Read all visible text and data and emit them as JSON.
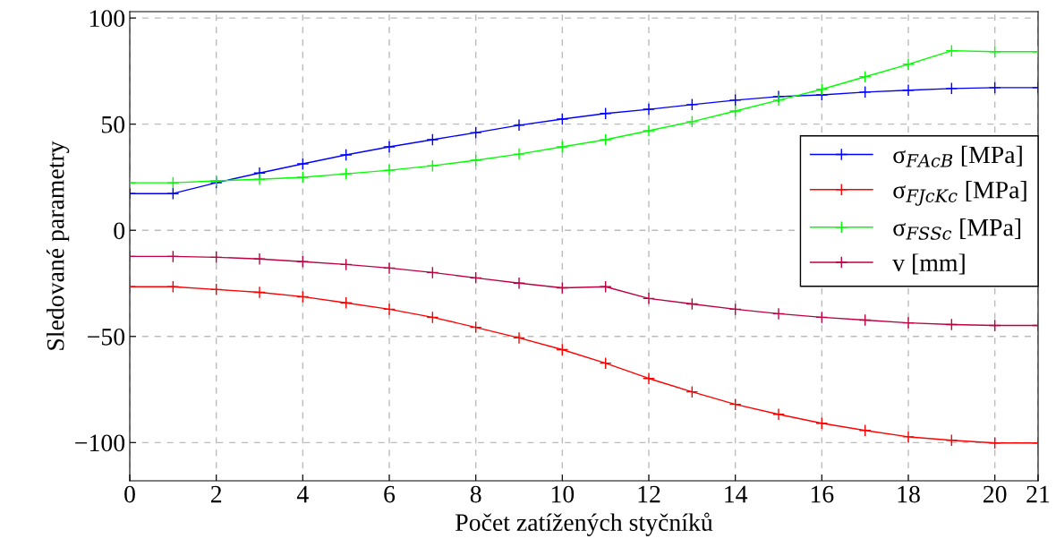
{
  "chart_data": {
    "type": "line",
    "xlabel": "Počet zatížených styčníků",
    "ylabel": "Sledované parametry",
    "x": [
      0,
      1,
      2,
      3,
      4,
      5,
      6,
      7,
      8,
      9,
      10,
      11,
      12,
      13,
      14,
      15,
      16,
      17,
      18,
      19,
      20,
      21
    ],
    "xlim": [
      0,
      21
    ],
    "xticks": [
      0,
      2,
      4,
      6,
      8,
      10,
      12,
      14,
      16,
      18,
      20,
      21
    ],
    "ylim": [
      -118,
      103
    ],
    "yticks": [
      {
        "value": -100,
        "label": "−100"
      },
      {
        "value": -50,
        "label": "−50"
      },
      0,
      50,
      100
    ],
    "grid": true,
    "legend": "right",
    "marker": "cross",
    "line_style": "solid",
    "series": [
      {
        "name": "σ$_{FAcB}$ [MPa]",
        "color": "#0000ff",
        "values": [
          17.3,
          17.3,
          22.4,
          27,
          31.3,
          35.5,
          39.3,
          42.7,
          46,
          49.5,
          52.4,
          55,
          57,
          59.2,
          61.3,
          63,
          63.8,
          65.1,
          66,
          66.8,
          67.2,
          67.2
        ]
      },
      {
        "name": "σ$_{FJcKc}$ [MPa]",
        "color": "#ff0000",
        "values": [
          -26.6,
          -26.6,
          -27.9,
          -29.2,
          -31.3,
          -34.2,
          -37.2,
          -41,
          -45.7,
          -50.7,
          -56.2,
          -62.6,
          -69.8,
          -76.1,
          -82,
          -86.7,
          -90.9,
          -94.3,
          -97.3,
          -98.9,
          -100.2,
          -100.2
        ]
      },
      {
        "name": "σ$_{FSSc}$ [MPa]",
        "color": "#00ff00",
        "values": [
          22.4,
          22.4,
          23.3,
          24,
          25,
          26.6,
          28.3,
          30.4,
          33,
          35.9,
          39.3,
          42.7,
          46.9,
          51.2,
          56.2,
          61.3,
          66.4,
          72.3,
          78.2,
          84.6,
          84.1,
          84.1
        ]
      },
      {
        "name": "v [mm]",
        "color": "#bf0040",
        "values": [
          -12.3,
          -12.3,
          -12.7,
          -13.5,
          -14.8,
          -16.1,
          -17.8,
          -19.9,
          -22.4,
          -24.9,
          -27.1,
          -26.6,
          -32.1,
          -34.7,
          -37.2,
          -39.3,
          -41,
          -42.3,
          -43.6,
          -44.4,
          -44.8,
          -44.8
        ]
      }
    ]
  }
}
